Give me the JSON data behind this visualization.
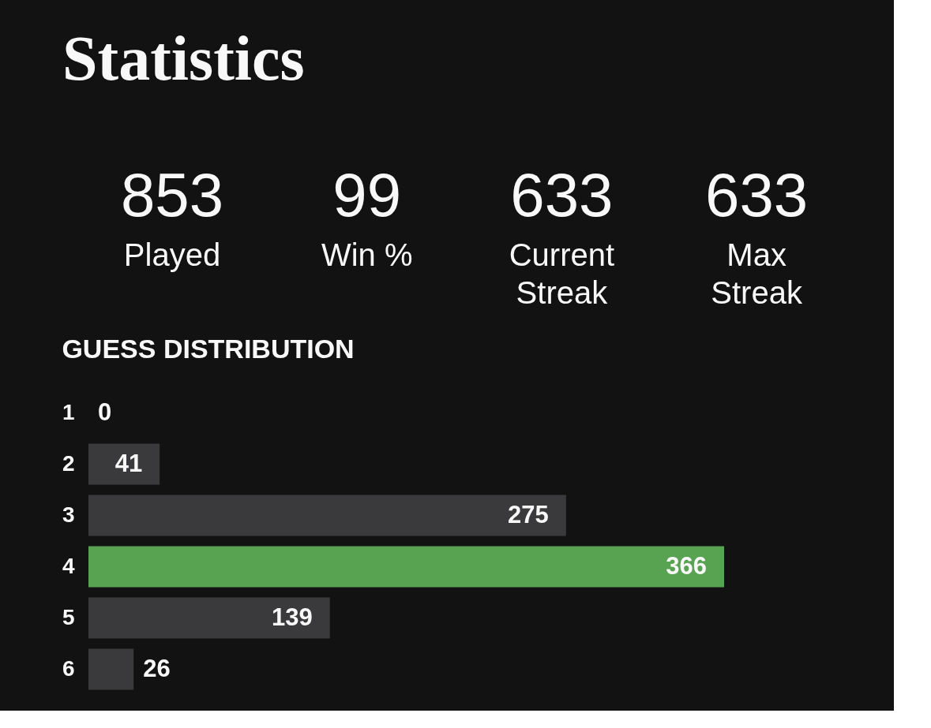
{
  "chart_data": [
    {
      "type": "other",
      "title": "Statistics",
      "annotations": [
        "853",
        "Played",
        "99",
        "Win %",
        "633",
        "Current\nStreak",
        "633",
        "Max\nStreak"
      ]
    },
    {
      "type": "bar",
      "title": "GUESS DISTRIBUTION",
      "orientation": "horizontal",
      "categories": [
        "1",
        "2",
        "3",
        "4",
        "5",
        "6"
      ],
      "values": [
        0,
        41,
        275,
        366,
        139,
        26
      ],
      "colors": [
        "#3a3a3c",
        "#3a3a3c",
        "#3a3a3c",
        "#58a351",
        "#3a3a3c",
        "#3a3a3c"
      ],
      "data_labels": true,
      "tick_labels": "y"
    }
  ]
}
